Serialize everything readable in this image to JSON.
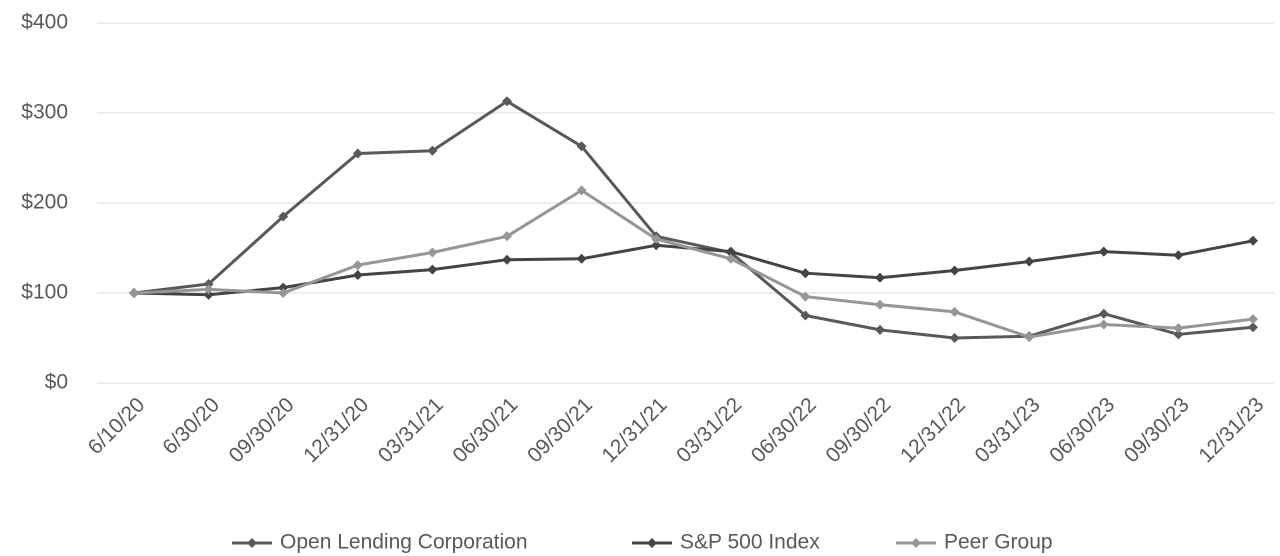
{
  "chart_data": {
    "type": "line",
    "categories": [
      "6/10/20",
      "6/30/20",
      "09/30/20",
      "12/31/20",
      "03/31/21",
      "06/30/21",
      "09/30/21",
      "12/31/21",
      "03/31/22",
      "06/30/22",
      "09/30/22",
      "12/31/22",
      "03/31/23",
      "06/30/23",
      "09/30/23",
      "12/31/23"
    ],
    "series": [
      {
        "name": "Open Lending Corporation",
        "color": "#595959",
        "values": [
          100,
          110,
          185,
          255,
          258,
          313,
          263,
          163,
          145,
          75,
          59,
          50,
          52,
          77,
          54,
          62
        ]
      },
      {
        "name": "S&P 500 Index",
        "color": "#444444",
        "values": [
          100,
          98,
          106,
          120,
          126,
          137,
          138,
          153,
          146,
          122,
          117,
          125,
          135,
          146,
          142,
          158
        ]
      },
      {
        "name": "Peer Group",
        "color": "#969696",
        "values": [
          100,
          104,
          100,
          131,
          145,
          163,
          214,
          160,
          138,
          96,
          87,
          79,
          51,
          65,
          61,
          71
        ]
      }
    ],
    "ylim": [
      0,
      400
    ],
    "yticks": [
      {
        "value": 0,
        "label": "$0"
      },
      {
        "value": 100,
        "label": "$100"
      },
      {
        "value": 200,
        "label": "$200"
      },
      {
        "value": 300,
        "label": "$300"
      },
      {
        "value": 400,
        "label": "$400"
      }
    ],
    "grid": true,
    "legend": "bottom"
  }
}
